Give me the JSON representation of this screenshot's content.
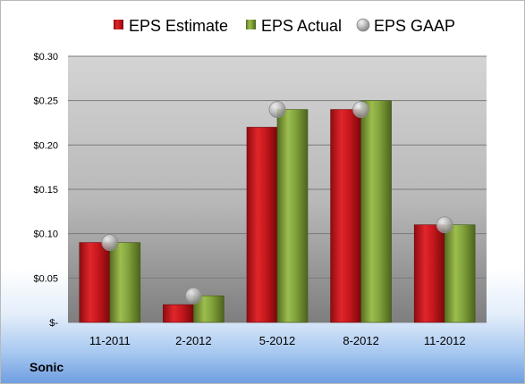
{
  "company": "Sonic",
  "colors": {
    "estimate": "#c0161b",
    "actual": "#7a9a35",
    "gaap": "#b4b4b4"
  },
  "chart_data": {
    "type": "bar",
    "categories": [
      "11-2011",
      "2-2012",
      "5-2012",
      "8-2012",
      "11-2012"
    ],
    "series": [
      {
        "name": "EPS Estimate",
        "values": [
          0.09,
          0.02,
          0.22,
          0.24,
          0.11
        ]
      },
      {
        "name": "EPS Actual",
        "values": [
          0.09,
          0.03,
          0.24,
          0.25,
          0.11
        ]
      },
      {
        "name": "EPS GAAP",
        "type": "scatter",
        "values": [
          0.09,
          0.03,
          0.24,
          0.24,
          0.11
        ]
      }
    ],
    "ylim": [
      0,
      0.3
    ],
    "yticks": [
      0,
      0.05,
      0.1,
      0.15,
      0.2,
      0.25,
      0.3
    ],
    "ytick_labels": [
      "$-",
      "$0.05",
      "$0.10",
      "$0.15",
      "$0.20",
      "$0.25",
      "$0.30"
    ],
    "legend_position": "top",
    "grid": true
  }
}
